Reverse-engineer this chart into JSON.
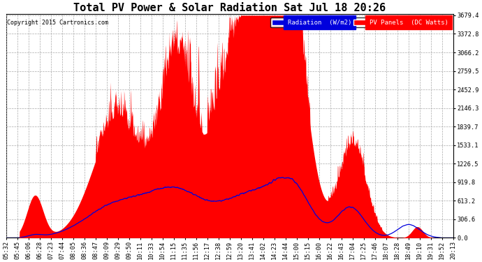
{
  "title": "Total PV Power & Solar Radiation Sat Jul 18 20:26",
  "copyright": "Copyright 2015 Cartronics.com",
  "legend_radiation": "Radiation  (W/m2)",
  "legend_pv": "PV Panels  (DC Watts)",
  "radiation_color": "#0000dd",
  "pv_color": "#ff0000",
  "bg_color": "#ffffff",
  "y_ticks": [
    0.0,
    306.6,
    613.2,
    919.8,
    1226.5,
    1533.1,
    1839.7,
    2146.3,
    2452.9,
    2759.5,
    3066.2,
    3372.8,
    3679.4
  ],
  "y_max": 3679.4,
  "y_min": 0.0,
  "x_labels": [
    "05:32",
    "05:45",
    "06:06",
    "06:28",
    "07:23",
    "07:44",
    "08:05",
    "08:36",
    "08:47",
    "09:09",
    "09:29",
    "09:50",
    "10:11",
    "10:33",
    "10:54",
    "11:15",
    "11:35",
    "11:56",
    "12:17",
    "12:38",
    "12:59",
    "13:20",
    "13:41",
    "14:02",
    "14:23",
    "14:44",
    "15:00",
    "15:15",
    "16:00",
    "16:22",
    "16:43",
    "17:04",
    "17:25",
    "17:46",
    "18:07",
    "18:28",
    "18:49",
    "19:10",
    "19:31",
    "19:52",
    "20:13"
  ],
  "title_fontsize": 11,
  "label_fontsize": 6.2
}
